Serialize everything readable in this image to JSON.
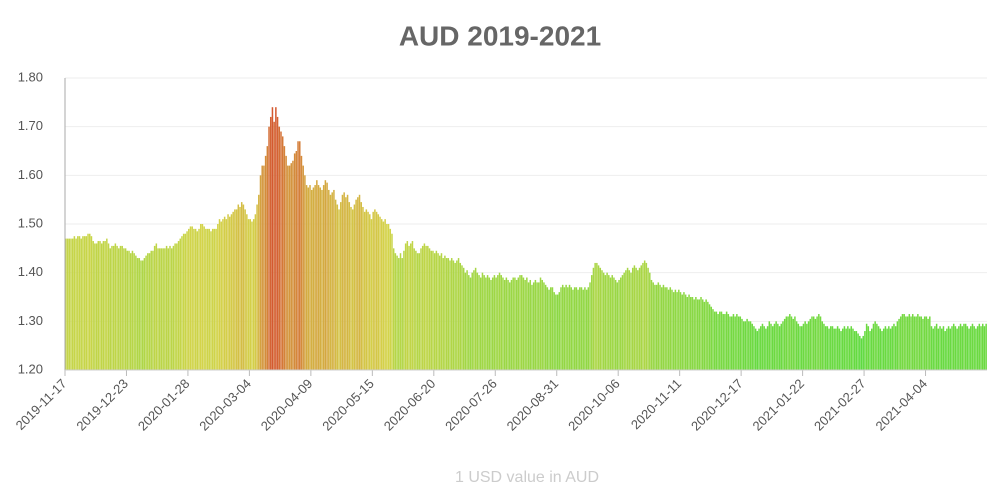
{
  "chart_data": {
    "type": "bar",
    "title": "AUD 2019-2021",
    "x_label": "1 USD value in AUD",
    "colors": [
      "#3ddc3d",
      "#d4d44a",
      "#d43a2a"
    ],
    "ylim": [
      1.2,
      1.8
    ],
    "yticks": [
      {
        "value": 1.2,
        "label": "1.20"
      },
      {
        "value": 1.3,
        "label": "1.30"
      },
      {
        "value": 1.4,
        "label": "1.40"
      },
      {
        "value": 1.5,
        "label": "1.50"
      },
      {
        "value": 1.6,
        "label": "1.60"
      },
      {
        "value": 1.7,
        "label": "1.70"
      },
      {
        "value": 1.8,
        "label": "1.80"
      }
    ],
    "grid": true,
    "categories": [
      "2019-11-17",
      null,
      null,
      null,
      null,
      null,
      null,
      null,
      null,
      null,
      null,
      null,
      null,
      null,
      null,
      null,
      null,
      null,
      null,
      null,
      null,
      null,
      null,
      null,
      null,
      null,
      null,
      null,
      null,
      null,
      null,
      null,
      null,
      null,
      null,
      null,
      "2019-12-23",
      null,
      null,
      null,
      null,
      null,
      null,
      null,
      null,
      null,
      null,
      null,
      null,
      null,
      null,
      null,
      null,
      null,
      null,
      null,
      null,
      null,
      null,
      null,
      null,
      null,
      null,
      null,
      null,
      null,
      null,
      null,
      null,
      null,
      null,
      null,
      "2020-01-28",
      null,
      null,
      null,
      null,
      null,
      null,
      null,
      null,
      null,
      null,
      null,
      null,
      null,
      null,
      null,
      null,
      null,
      null,
      null,
      null,
      null,
      null,
      null,
      null,
      null,
      null,
      null,
      null,
      null,
      null,
      null,
      null,
      null,
      null,
      null,
      "2020-03-04",
      null,
      null,
      null,
      null,
      null,
      null,
      null,
      null,
      null,
      null,
      null,
      null,
      null,
      null,
      null,
      null,
      null,
      null,
      null,
      null,
      null,
      null,
      null,
      null,
      null,
      null,
      null,
      null,
      null,
      null,
      null,
      null,
      null,
      null,
      null,
      "2020-04-09",
      null,
      null,
      null,
      null,
      null,
      null,
      null,
      null,
      null,
      null,
      null,
      null,
      null,
      null,
      null,
      null,
      null,
      null,
      null,
      null,
      null,
      null,
      null,
      null,
      null,
      null,
      null,
      null,
      null,
      null,
      null,
      null,
      null,
      null,
      null,
      "2020-05-15",
      null,
      null,
      null,
      null,
      null,
      null,
      null,
      null,
      null,
      null,
      null,
      null,
      null,
      null,
      null,
      null,
      null,
      null,
      null,
      null,
      null,
      null,
      null,
      null,
      null,
      null,
      null,
      null,
      null,
      null,
      null,
      null,
      null,
      null,
      null,
      "2020-06-20",
      null,
      null,
      null,
      null,
      null,
      null,
      null,
      null,
      null,
      null,
      null,
      null,
      null,
      null,
      null,
      null,
      null,
      null,
      null,
      null,
      null,
      null,
      null,
      null,
      null,
      null,
      null,
      null,
      null,
      null,
      null,
      null,
      null,
      null,
      null,
      "2020-07-26",
      null,
      null,
      null,
      null,
      null,
      null,
      null,
      null,
      null,
      null,
      null,
      null,
      null,
      null,
      null,
      null,
      null,
      null,
      null,
      null,
      null,
      null,
      null,
      null,
      null,
      null,
      null,
      null,
      null,
      null,
      null,
      null,
      null,
      null,
      null,
      "2020-08-31",
      null,
      null,
      null,
      null,
      null,
      null,
      null,
      null,
      null,
      null,
      null,
      null,
      null,
      null,
      null,
      null,
      null,
      null,
      null,
      null,
      null,
      null,
      null,
      null,
      null,
      null,
      null,
      null,
      null,
      null,
      null,
      null,
      null,
      null,
      null,
      "2020-10-06",
      null,
      null,
      null,
      null,
      null,
      null,
      null,
      null,
      null,
      null,
      null,
      null,
      null,
      null,
      null,
      null,
      null,
      null,
      null,
      null,
      null,
      null,
      null,
      null,
      null,
      null,
      null,
      null,
      null,
      null,
      null,
      null,
      null,
      null,
      null,
      "2020-11-11",
      null,
      null,
      null,
      null,
      null,
      null,
      null,
      null,
      null,
      null,
      null,
      null,
      null,
      null,
      null,
      null,
      null,
      null,
      null,
      null,
      null,
      null,
      null,
      null,
      null,
      null,
      null,
      null,
      null,
      null,
      null,
      null,
      null,
      null,
      null,
      "2020-12-17",
      null,
      null,
      null,
      null,
      null,
      null,
      null,
      null,
      null,
      null,
      null,
      null,
      null,
      null,
      null,
      null,
      null,
      null,
      null,
      null,
      null,
      null,
      null,
      null,
      null,
      null,
      null,
      null,
      null,
      null,
      null,
      null,
      null,
      null,
      null,
      "2021-01-22",
      null,
      null,
      null,
      null,
      null,
      null,
      null,
      null,
      null,
      null,
      null,
      null,
      null,
      null,
      null,
      null,
      null,
      null,
      null,
      null,
      null,
      null,
      null,
      null,
      null,
      null,
      null,
      null,
      null,
      null,
      null,
      null,
      null,
      null,
      null,
      "2021-02-27",
      null,
      null,
      null,
      null,
      null,
      null,
      null,
      null,
      null,
      null,
      null,
      null,
      null,
      null,
      null,
      null,
      null,
      null,
      null,
      null,
      null,
      null,
      null,
      null,
      null,
      null,
      null,
      null,
      null,
      null,
      null,
      null,
      null,
      null,
      null,
      "2021-04-04",
      null,
      null,
      null,
      null,
      null,
      null,
      null,
      null,
      null,
      null,
      null,
      null,
      null,
      null,
      null,
      null,
      null,
      null,
      null,
      null,
      null,
      null,
      null,
      null,
      null,
      null,
      null,
      null,
      null,
      null,
      null,
      null,
      null,
      null,
      null
    ],
    "values": [
      1.47,
      1.47,
      1.47,
      1.47,
      1.47,
      1.475,
      1.47,
      1.475,
      1.475,
      1.47,
      1.475,
      1.475,
      1.475,
      1.48,
      1.48,
      1.475,
      1.465,
      1.46,
      1.46,
      1.465,
      1.465,
      1.46,
      1.465,
      1.465,
      1.47,
      1.46,
      1.45,
      1.455,
      1.455,
      1.46,
      1.455,
      1.45,
      1.455,
      1.455,
      1.45,
      1.45,
      1.445,
      1.445,
      1.44,
      1.445,
      1.44,
      1.435,
      1.43,
      1.43,
      1.425,
      1.425,
      1.43,
      1.435,
      1.44,
      1.44,
      1.445,
      1.445,
      1.455,
      1.46,
      1.45,
      1.45,
      1.45,
      1.45,
      1.45,
      1.455,
      1.45,
      1.455,
      1.45,
      1.455,
      1.46,
      1.46,
      1.465,
      1.47,
      1.475,
      1.48,
      1.48,
      1.485,
      1.49,
      1.495,
      1.495,
      1.49,
      1.49,
      1.485,
      1.49,
      1.5,
      1.5,
      1.495,
      1.49,
      1.49,
      1.49,
      1.485,
      1.49,
      1.49,
      1.49,
      1.5,
      1.51,
      1.505,
      1.51,
      1.515,
      1.51,
      1.52,
      1.515,
      1.52,
      1.525,
      1.53,
      1.53,
      1.54,
      1.535,
      1.545,
      1.54,
      1.53,
      1.52,
      1.51,
      1.51,
      1.505,
      1.51,
      1.52,
      1.54,
      1.56,
      1.6,
      1.62,
      1.62,
      1.64,
      1.66,
      1.7,
      1.72,
      1.74,
      1.71,
      1.74,
      1.72,
      1.7,
      1.69,
      1.68,
      1.66,
      1.64,
      1.62,
      1.62,
      1.625,
      1.63,
      1.645,
      1.65,
      1.67,
      1.67,
      1.64,
      1.62,
      1.6,
      1.58,
      1.575,
      1.58,
      1.57,
      1.575,
      1.58,
      1.59,
      1.58,
      1.575,
      1.57,
      1.58,
      1.59,
      1.585,
      1.57,
      1.56,
      1.565,
      1.57,
      1.55,
      1.54,
      1.53,
      1.545,
      1.56,
      1.565,
      1.555,
      1.56,
      1.545,
      1.535,
      1.53,
      1.54,
      1.55,
      1.555,
      1.56,
      1.545,
      1.535,
      1.525,
      1.53,
      1.525,
      1.52,
      1.51,
      1.525,
      1.53,
      1.525,
      1.52,
      1.515,
      1.51,
      1.505,
      1.51,
      1.5,
      1.5,
      1.49,
      1.48,
      1.45,
      1.44,
      1.435,
      1.43,
      1.44,
      1.43,
      1.445,
      1.46,
      1.465,
      1.455,
      1.46,
      1.465,
      1.45,
      1.445,
      1.44,
      1.44,
      1.45,
      1.455,
      1.46,
      1.455,
      1.455,
      1.45,
      1.445,
      1.445,
      1.44,
      1.445,
      1.44,
      1.435,
      1.44,
      1.43,
      1.435,
      1.43,
      1.43,
      1.425,
      1.43,
      1.425,
      1.42,
      1.425,
      1.43,
      1.42,
      1.415,
      1.41,
      1.4,
      1.405,
      1.395,
      1.39,
      1.4,
      1.405,
      1.41,
      1.4,
      1.395,
      1.39,
      1.4,
      1.395,
      1.39,
      1.395,
      1.39,
      1.385,
      1.39,
      1.395,
      1.39,
      1.395,
      1.4,
      1.395,
      1.39,
      1.385,
      1.39,
      1.385,
      1.38,
      1.385,
      1.39,
      1.39,
      1.385,
      1.39,
      1.395,
      1.395,
      1.39,
      1.385,
      1.39,
      1.38,
      1.385,
      1.375,
      1.38,
      1.385,
      1.38,
      1.38,
      1.39,
      1.385,
      1.38,
      1.375,
      1.37,
      1.365,
      1.37,
      1.37,
      1.36,
      1.355,
      1.355,
      1.36,
      1.37,
      1.375,
      1.37,
      1.375,
      1.37,
      1.375,
      1.37,
      1.365,
      1.37,
      1.37,
      1.365,
      1.37,
      1.37,
      1.365,
      1.37,
      1.365,
      1.37,
      1.38,
      1.395,
      1.41,
      1.42,
      1.42,
      1.415,
      1.41,
      1.405,
      1.4,
      1.395,
      1.4,
      1.395,
      1.39,
      1.395,
      1.39,
      1.385,
      1.38,
      1.385,
      1.39,
      1.395,
      1.4,
      1.405,
      1.41,
      1.405,
      1.4,
      1.41,
      1.415,
      1.41,
      1.405,
      1.41,
      1.415,
      1.42,
      1.425,
      1.42,
      1.41,
      1.4,
      1.385,
      1.38,
      1.375,
      1.375,
      1.38,
      1.375,
      1.37,
      1.375,
      1.37,
      1.37,
      1.365,
      1.37,
      1.365,
      1.36,
      1.365,
      1.36,
      1.365,
      1.36,
      1.355,
      1.36,
      1.355,
      1.35,
      1.355,
      1.35,
      1.35,
      1.345,
      1.35,
      1.345,
      1.345,
      1.35,
      1.345,
      1.34,
      1.345,
      1.34,
      1.335,
      1.33,
      1.325,
      1.32,
      1.32,
      1.315,
      1.32,
      1.32,
      1.315,
      1.315,
      1.32,
      1.315,
      1.31,
      1.31,
      1.315,
      1.31,
      1.315,
      1.31,
      1.31,
      1.305,
      1.3,
      1.3,
      1.305,
      1.3,
      1.3,
      1.295,
      1.29,
      1.285,
      1.28,
      1.285,
      1.29,
      1.295,
      1.29,
      1.285,
      1.29,
      1.3,
      1.295,
      1.29,
      1.295,
      1.3,
      1.295,
      1.29,
      1.295,
      1.3,
      1.305,
      1.31,
      1.31,
      1.315,
      1.31,
      1.305,
      1.31,
      1.3,
      1.295,
      1.29,
      1.29,
      1.295,
      1.3,
      1.295,
      1.3,
      1.305,
      1.31,
      1.31,
      1.305,
      1.31,
      1.315,
      1.31,
      1.3,
      1.295,
      1.29,
      1.29,
      1.285,
      1.29,
      1.29,
      1.285,
      1.285,
      1.29,
      1.285,
      1.28,
      1.285,
      1.29,
      1.285,
      1.29,
      1.285,
      1.29,
      1.285,
      1.28,
      1.28,
      1.275,
      1.27,
      1.265,
      1.27,
      1.28,
      1.295,
      1.29,
      1.28,
      1.285,
      1.295,
      1.3,
      1.295,
      1.29,
      1.285,
      1.28,
      1.285,
      1.29,
      1.285,
      1.29,
      1.285,
      1.29,
      1.295,
      1.29,
      1.3,
      1.305,
      1.31,
      1.315,
      1.315,
      1.31,
      1.31,
      1.315,
      1.31,
      1.315,
      1.31,
      1.31,
      1.315,
      1.31,
      1.31,
      1.305,
      1.31,
      1.31,
      1.305,
      1.31,
      1.29,
      1.285,
      1.29,
      1.295,
      1.285,
      1.29,
      1.285,
      1.29,
      1.28,
      1.285,
      1.29,
      1.285,
      1.29,
      1.295,
      1.29,
      1.285,
      1.29,
      1.295,
      1.29,
      1.295,
      1.295,
      1.29,
      1.285,
      1.29,
      1.295,
      1.29,
      1.285,
      1.29,
      1.295,
      1.29,
      1.295,
      1.29,
      1.295
    ]
  }
}
